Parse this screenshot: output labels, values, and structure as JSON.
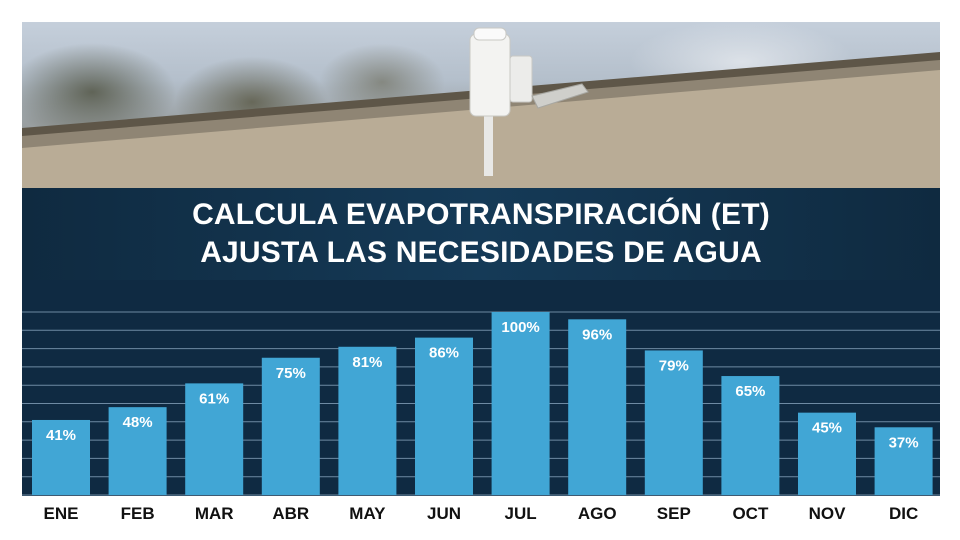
{
  "header": {
    "photo_alt": "rain sensor on roof edge",
    "title_lines": [
      "CALCULA EVAPOTRANSPIRACIÓN (ET)",
      "AJUSTA LAS NECESIDADES DE AGUA"
    ]
  },
  "colors": {
    "bar": "#41a6d5",
    "chart_bg": "#0f2a42",
    "gridline": "#6e8aa3",
    "value_label": "#ffffff",
    "axis_label": "#111111"
  },
  "chart_data": {
    "type": "bar",
    "categories": [
      "ENE",
      "FEB",
      "MAR",
      "ABR",
      "MAY",
      "JUN",
      "JUL",
      "AGO",
      "SEP",
      "OCT",
      "NOV",
      "DIC"
    ],
    "values": [
      41,
      48,
      61,
      75,
      81,
      86,
      100,
      96,
      79,
      65,
      45,
      37
    ],
    "value_labels": [
      "41%",
      "48%",
      "61%",
      "75%",
      "81%",
      "86%",
      "100%",
      "96%",
      "79%",
      "65%",
      "45%",
      "37%"
    ],
    "ylim": [
      0,
      100
    ],
    "grid": true
  }
}
